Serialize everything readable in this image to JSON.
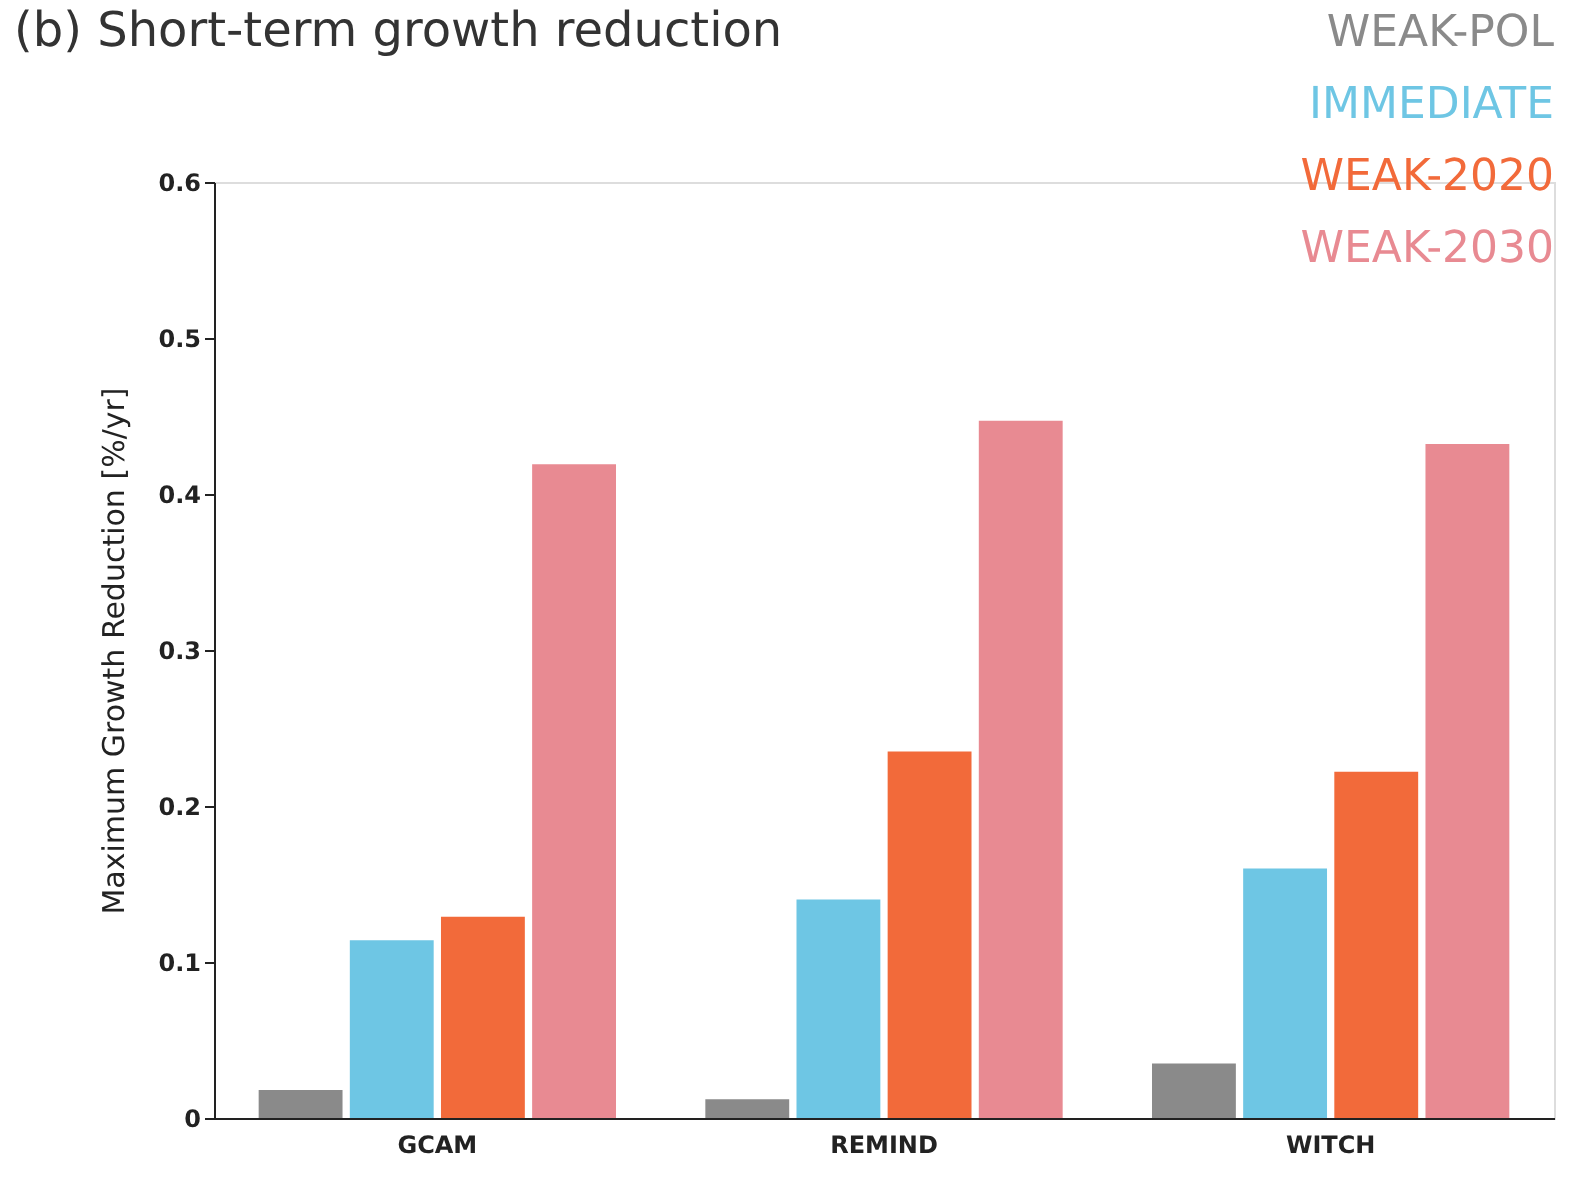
{
  "chart_data": {
    "type": "bar",
    "title": "(b) Short-term growth reduction",
    "ylabel": "Maximum Growth Reduction [%/yr]",
    "categories": [
      "GCAM",
      "REMIND",
      "WITCH"
    ],
    "series": [
      {
        "name": "WEAK-POL",
        "color": "#8a8a8a",
        "values": [
          0.018,
          0.012,
          0.035
        ]
      },
      {
        "name": "IMMEDIATE",
        "color": "#6ec6e4",
        "values": [
          0.114,
          0.14,
          0.16
        ]
      },
      {
        "name": "WEAK-2020",
        "color": "#f26a3a",
        "values": [
          0.129,
          0.235,
          0.222
        ]
      },
      {
        "name": "WEAK-2030",
        "color": "#e88a92",
        "values": [
          0.419,
          0.447,
          0.432
        ]
      }
    ],
    "ylim": [
      0,
      0.6
    ],
    "yticks": [
      0,
      0.1,
      0.2,
      0.3,
      0.4,
      0.5,
      0.6
    ],
    "grid": false,
    "legend": "top right"
  }
}
